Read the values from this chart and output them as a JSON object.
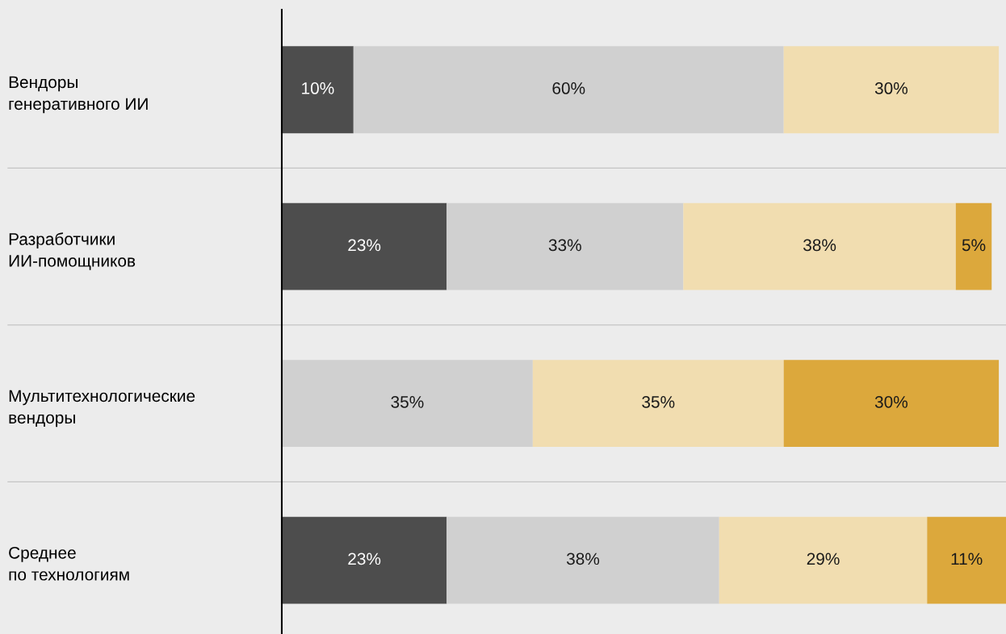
{
  "chart_data": {
    "type": "bar",
    "orientation": "horizontal",
    "stacked": true,
    "categories": [
      "Вендоры\nгенеративного ИИ",
      "Разработчики\nИИ-помощников",
      "Мультитехнологические\nвендоры",
      "Среднее\nпо технологиям"
    ],
    "series": [
      {
        "color": "#4d4d4d",
        "values": [
          10,
          23,
          null,
          23
        ],
        "value_labels": [
          "10%",
          "23%",
          null,
          "23%"
        ]
      },
      {
        "color": "#d0d0d0",
        "values": [
          60,
          33,
          35,
          38
        ],
        "value_labels": [
          "60%",
          "33%",
          "35%",
          "38%"
        ]
      },
      {
        "color": "#f1ddb0",
        "values": [
          30,
          38,
          35,
          29
        ],
        "value_labels": [
          "30%",
          "38%",
          "35%",
          "29%"
        ]
      },
      {
        "color": "#dca83c",
        "values": [
          null,
          5,
          30,
          11
        ],
        "value_labels": [
          null,
          "5%",
          "30%",
          "11%"
        ]
      }
    ],
    "tick_labels": "y",
    "grid": "y"
  }
}
